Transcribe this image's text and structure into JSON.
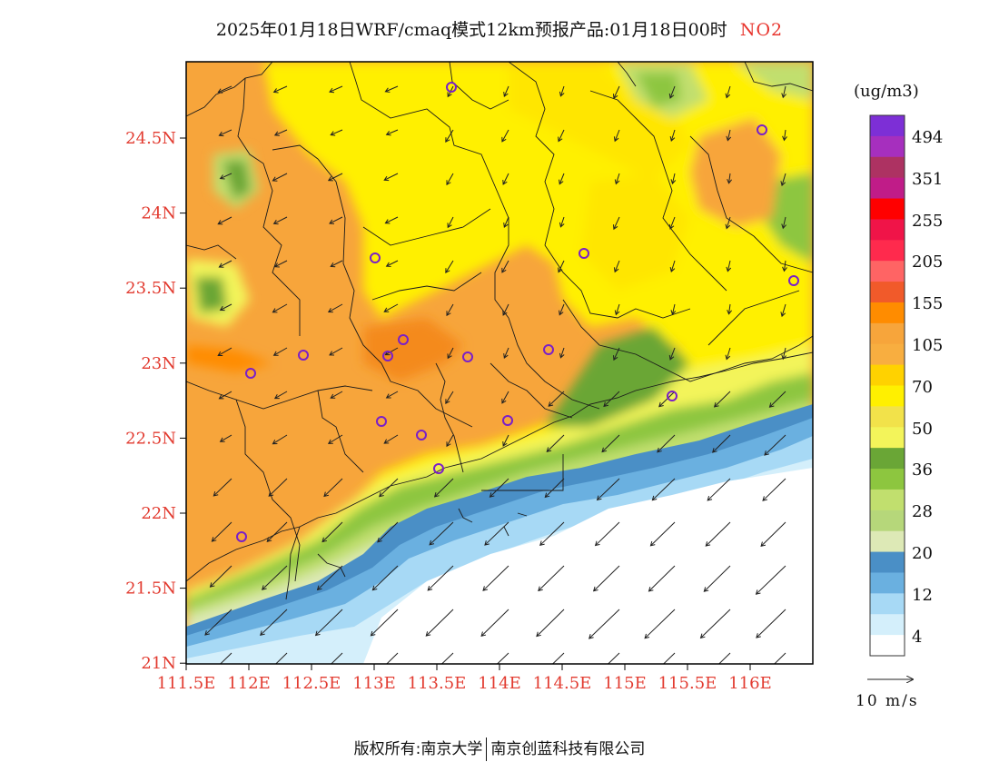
{
  "title": {
    "text": "2025年01月18日WRF/cmaq模式12km预报产品:01月18日00时",
    "pollutant": "NO2"
  },
  "axes": {
    "lat_labels": [
      "24.5N",
      "24N",
      "23.5N",
      "23N",
      "22.5N",
      "22N",
      "21.5N",
      "21N"
    ],
    "lon_labels": [
      "111.5E",
      "112E",
      "112.5E",
      "113E",
      "113.5E",
      "114E",
      "114.5E",
      "115E",
      "115.5E",
      "116E"
    ],
    "label_color": "#e23b30"
  },
  "legend": {
    "unit": "(ug/m3)",
    "labels": [
      "494",
      "351",
      "255",
      "205",
      "155",
      "105",
      "70",
      "50",
      "36",
      "28",
      "20",
      "12",
      "4"
    ],
    "colors_top_to_bottom": [
      "#7d2fd6",
      "#a62fbe",
      "#ad3262",
      "#c01c88",
      "#ff0000",
      "#f01448",
      "#ff2a4d",
      "#ff6464",
      "#f15a2a",
      "#ff8c00",
      "#f7a53b",
      "#f8ae40",
      "#ffd200",
      "#fff000",
      "#f2e24a",
      "#f3f45a",
      "#6aa636",
      "#8dc63f",
      "#c1df6e",
      "#b6d77a",
      "#dde9b6",
      "#4a8fc6",
      "#6ab0e0",
      "#a7d9f5",
      "#d4effb",
      "#ffffff"
    ]
  },
  "wind_reference": {
    "label": "10 m/s"
  },
  "stations_color": "#7a1fc8",
  "copyright": {
    "prefix": "版权所有:",
    "org1": "南京大学",
    "org2": "南京创蓝科技有限公司"
  }
}
